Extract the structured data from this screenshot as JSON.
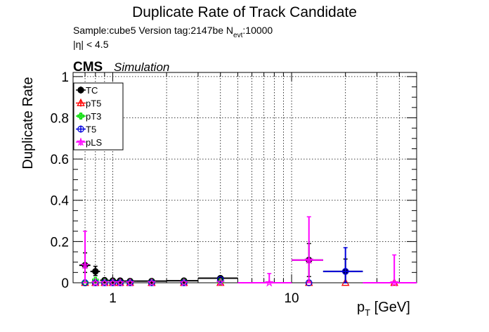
{
  "header": {
    "title": "Duplicate Rate of Track Candidate",
    "sample_prefix": "Sample:cube5   Version tag:2147be  N",
    "nevt_sub": "evt",
    "nevt_value": ":10000",
    "eta_cut": "|η| < 4.5",
    "cms": "CMS",
    "simulation": "Simulation"
  },
  "chart_data": {
    "type": "scatter",
    "x_scale": "log",
    "xlabel": "p",
    "xlabel_sub": "T",
    "xlabel_unit": " [GeV]",
    "ylabel": "Duplicate Rate",
    "xlim": [
      0.6,
      50
    ],
    "ylim": [
      0,
      1.02
    ],
    "grid": true,
    "legend_position": "top-left",
    "y_ticks": [
      0,
      0.2,
      0.4,
      0.6,
      0.8,
      1
    ],
    "y_tick_labels": [
      "0",
      "0.2",
      "0.4",
      "0.6",
      "0.8",
      "1"
    ],
    "x_tick_major": [
      1,
      10
    ],
    "x_tick_labels": [
      "1",
      "10"
    ],
    "series": [
      {
        "name": "TC",
        "color": "#000000",
        "marker": "filled-circle",
        "points": [
          {
            "x": 0.7,
            "xlo": 0.65,
            "xhi": 0.75,
            "y": 0.085,
            "eyl": 0.035,
            "eyh": 0.06
          },
          {
            "x": 0.8,
            "xlo": 0.75,
            "xhi": 0.85,
            "y": 0.055,
            "eyl": 0.02,
            "eyh": 0.025
          },
          {
            "x": 0.9,
            "xlo": 0.85,
            "xhi": 0.95,
            "y": 0.012,
            "eyl": 0.006,
            "eyh": 0.008
          },
          {
            "x": 1.0,
            "xlo": 0.95,
            "xhi": 1.05,
            "y": 0.01,
            "eyl": 0.005,
            "eyh": 0.007
          },
          {
            "x": 1.1,
            "xlo": 1.05,
            "xhi": 1.15,
            "y": 0.01,
            "eyl": 0.005,
            "eyh": 0.007
          },
          {
            "x": 1.25,
            "xlo": 1.15,
            "xhi": 1.35,
            "y": 0.008,
            "eyl": 0.004,
            "eyh": 0.006
          },
          {
            "x": 1.65,
            "xlo": 1.35,
            "xhi": 2.0,
            "y": 0.008,
            "eyl": 0.004,
            "eyh": 0.005
          },
          {
            "x": 2.5,
            "xlo": 2.0,
            "xhi": 3.0,
            "y": 0.01,
            "eyl": 0.004,
            "eyh": 0.005
          },
          {
            "x": 4.0,
            "xlo": 3.0,
            "xhi": 5.0,
            "y": 0.022,
            "eyl": 0.006,
            "eyh": 0.008
          },
          {
            "x": 12.5,
            "xlo": 10.0,
            "xhi": 15.0,
            "y": 0.11,
            "eyl": 0.08,
            "eyh": 0.08
          },
          {
            "x": 20.0,
            "xlo": 15.0,
            "xhi": 25.0,
            "y": 0.055,
            "eyl": 0.055,
            "eyh": 0.06
          }
        ]
      },
      {
        "name": "pT5",
        "color": "#ff0000",
        "marker": "open-triangle",
        "points": [
          {
            "x": 0.7,
            "y": 0.0
          },
          {
            "x": 0.8,
            "y": 0.0
          },
          {
            "x": 0.9,
            "y": 0.0
          },
          {
            "x": 1.0,
            "y": 0.0
          },
          {
            "x": 1.1,
            "y": 0.0
          },
          {
            "x": 1.25,
            "y": 0.0
          },
          {
            "x": 1.65,
            "y": 0.0
          },
          {
            "x": 2.5,
            "y": 0.0
          },
          {
            "x": 4.0,
            "y": 0.0
          },
          {
            "x": 12.5,
            "y": 0.0
          },
          {
            "x": 20.0,
            "y": 0.0
          },
          {
            "x": 37.5,
            "y": 0.0
          }
        ]
      },
      {
        "name": "pT3",
        "color": "#00dd00",
        "marker": "open-cross",
        "points": [
          {
            "x": 0.7,
            "y": 0.0
          },
          {
            "x": 0.8,
            "y": 0.012
          },
          {
            "x": 0.9,
            "y": 0.004
          },
          {
            "x": 1.0,
            "y": 0.002
          },
          {
            "x": 1.1,
            "y": 0.001
          },
          {
            "x": 1.25,
            "y": 0.001
          },
          {
            "x": 1.65,
            "y": 0.002
          },
          {
            "x": 2.5,
            "y": 0.003
          },
          {
            "x": 4.0,
            "y": 0.005
          }
        ]
      },
      {
        "name": "T5",
        "color": "#0000dd",
        "marker": "open-circle",
        "points": [
          {
            "x": 0.7,
            "y": 0.0
          },
          {
            "x": 0.8,
            "y": 0.0
          },
          {
            "x": 0.9,
            "y": 0.0
          },
          {
            "x": 1.0,
            "y": 0.0
          },
          {
            "x": 1.1,
            "y": 0.0
          },
          {
            "x": 1.25,
            "y": 0.0
          },
          {
            "x": 1.65,
            "y": 0.0
          },
          {
            "x": 2.5,
            "y": 0.0
          },
          {
            "x": 4.0,
            "y": 0.015
          },
          {
            "x": 12.5,
            "y": 0.0
          },
          {
            "x": 20.0,
            "xlo": 15.0,
            "xhi": 25.0,
            "y": 0.055,
            "eyl": 0.055,
            "eyh": 0.115
          }
        ]
      },
      {
        "name": "pLS",
        "color": "#ff00ff",
        "marker": "open-star",
        "points": [
          {
            "x": 0.7,
            "y": 0.085,
            "eyl": 0.085,
            "eyh": 0.165
          },
          {
            "x": 0.8,
            "y": 0.0
          },
          {
            "x": 0.9,
            "y": 0.0
          },
          {
            "x": 1.0,
            "y": 0.0
          },
          {
            "x": 1.1,
            "y": 0.0
          },
          {
            "x": 1.25,
            "y": 0.0
          },
          {
            "x": 1.65,
            "y": 0.0
          },
          {
            "x": 2.5,
            "y": 0.0
          },
          {
            "x": 4.0,
            "y": 0.002
          },
          {
            "x": 7.5,
            "xlo": 5.0,
            "xhi": 10.0,
            "y": 0.0,
            "eyl": 0.0,
            "eyh": 0.045
          },
          {
            "x": 12.5,
            "xlo": 10.0,
            "xhi": 15.0,
            "y": 0.11,
            "eyl": 0.11,
            "eyh": 0.21
          },
          {
            "x": 37.5,
            "xlo": 25.0,
            "xhi": 50.0,
            "y": 0.0,
            "eyl": 0.0,
            "eyh": 0.135
          }
        ]
      }
    ]
  }
}
